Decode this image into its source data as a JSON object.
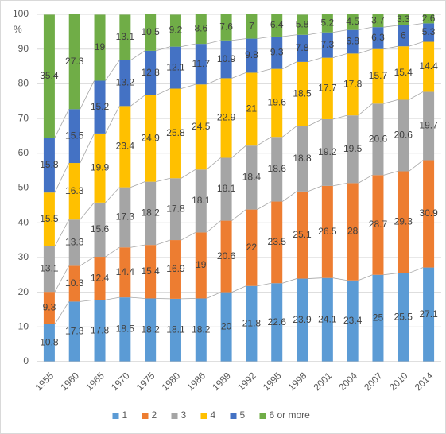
{
  "chart_data": {
    "type": "stacked-bar",
    "ylabel": "%",
    "categories": [
      "1955",
      "1960",
      "1965",
      "1970",
      "1975",
      "1980",
      "1986",
      "1989",
      "1992",
      "1995",
      "1998",
      "2001",
      "2004",
      "2007",
      "2010",
      "2014"
    ],
    "series": [
      {
        "name": "1",
        "color": "#5b9bd5",
        "values": [
          10.8,
          17.3,
          17.8,
          18.5,
          18.2,
          18.1,
          18.2,
          20,
          21.8,
          22.6,
          23.9,
          24.1,
          23.4,
          25,
          25.5,
          27.1
        ]
      },
      {
        "name": "2",
        "color": "#ed7d31",
        "values": [
          9.3,
          10.3,
          12.4,
          14.4,
          15.4,
          16.9,
          19,
          20.6,
          22,
          23.5,
          25.1,
          26.5,
          28,
          28.7,
          29.3,
          30.9
        ]
      },
      {
        "name": "3",
        "color": "#a5a5a5",
        "values": [
          13.1,
          13.3,
          15.6,
          17.3,
          18.2,
          17.8,
          18.1,
          18.1,
          18.4,
          18.6,
          18.8,
          19.2,
          19.5,
          20.6,
          20.6,
          19.7
        ]
      },
      {
        "name": "4",
        "color": "#ffc000",
        "values": [
          15.5,
          16.3,
          19.9,
          23.4,
          24.9,
          25.8,
          24.5,
          22.9,
          21,
          19.6,
          18.5,
          17.7,
          17.8,
          15.7,
          15.4,
          14.4
        ]
      },
      {
        "name": "5",
        "color": "#4472c4",
        "values": [
          15.8,
          15.5,
          15.2,
          13.2,
          12.8,
          12.1,
          11.7,
          10.9,
          9.8,
          9.3,
          7.8,
          7.3,
          6.8,
          6.3,
          6,
          5.3
        ]
      },
      {
        "name": "6 or more",
        "color": "#70ad47",
        "values": [
          35.4,
          27.3,
          19,
          13.1,
          10.5,
          9.2,
          8.6,
          7.6,
          7,
          6.4,
          5.8,
          5.2,
          4.5,
          3.7,
          3.3,
          2.6
        ]
      }
    ],
    "ylim": [
      0,
      100
    ],
    "yticks": [
      0,
      10,
      20,
      30,
      40,
      50,
      60,
      70,
      80,
      90,
      100
    ],
    "grid": true,
    "legend": "bottom"
  }
}
